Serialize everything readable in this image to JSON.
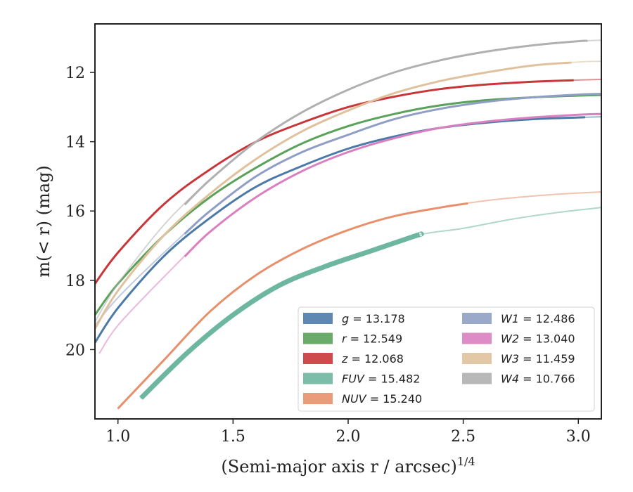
{
  "chart_data": {
    "type": "line",
    "xlabel": "(Semi-major axis r / arcsec)",
    "xlabel_sup": "1/4",
    "ylabel": "m(< r) (mag)",
    "xlim": [
      0.9,
      3.1
    ],
    "ylim": [
      22.0,
      10.6
    ],
    "y_inverted": true,
    "x_ticks": [
      "1.0",
      "1.5",
      "2.0",
      "2.5",
      "3.0"
    ],
    "y_ticks": [
      "12",
      "14",
      "16",
      "18",
      "20"
    ],
    "grid": false,
    "legend_position": "lower-right",
    "series": [
      {
        "name": "g",
        "value": "13.178",
        "color": "#4c7aa8",
        "x": [
          0.9,
          1.0,
          1.2,
          1.4,
          1.6,
          1.8,
          2.0,
          2.2,
          2.4,
          2.6,
          2.8,
          3.0,
          3.1
        ],
        "y": [
          19.8,
          18.8,
          17.3,
          16.2,
          15.3,
          14.7,
          14.2,
          13.85,
          13.6,
          13.45,
          13.35,
          13.3,
          13.28
        ],
        "solid_until": 3.03
      },
      {
        "name": "r",
        "value": "12.549",
        "color": "#5aa25a",
        "x": [
          0.9,
          1.0,
          1.2,
          1.4,
          1.6,
          1.8,
          2.0,
          2.2,
          2.4,
          2.6,
          2.8,
          3.0,
          3.1
        ],
        "y": [
          19.0,
          18.1,
          16.7,
          15.6,
          14.75,
          14.05,
          13.55,
          13.2,
          12.95,
          12.8,
          12.72,
          12.67,
          12.65
        ],
        "solid_until": 3.1
      },
      {
        "name": "z",
        "value": "12.068",
        "color": "#c9363a",
        "x": [
          0.9,
          1.0,
          1.2,
          1.4,
          1.6,
          1.8,
          2.0,
          2.2,
          2.4,
          2.6,
          2.8,
          3.0,
          3.1
        ],
        "y": [
          18.1,
          17.2,
          15.8,
          14.8,
          14.0,
          13.45,
          13.0,
          12.7,
          12.48,
          12.35,
          12.27,
          12.22,
          12.2
        ],
        "solid_until": 2.98
      },
      {
        "name": "FUV",
        "value": "15.482",
        "color": "#6db6a0",
        "x": [
          1.1,
          1.3,
          1.5,
          1.7,
          1.9,
          2.1,
          2.3,
          2.5,
          2.7,
          2.9,
          3.1
        ],
        "y": [
          21.4,
          20.1,
          19.0,
          18.15,
          17.6,
          17.15,
          16.7,
          16.5,
          16.25,
          16.05,
          15.9
        ],
        "solid_until": 2.31
      },
      {
        "name": "NUV",
        "value": "15.240",
        "color": "#e8906c",
        "x": [
          1.0,
          1.2,
          1.4,
          1.6,
          1.8,
          2.0,
          2.2,
          2.4,
          2.6,
          2.8,
          3.0,
          3.1
        ],
        "y": [
          21.7,
          20.3,
          18.9,
          17.85,
          17.1,
          16.55,
          16.15,
          15.9,
          15.7,
          15.57,
          15.48,
          15.45
        ],
        "solid_until": 2.52
      },
      {
        "name": "W1",
        "value": "12.486",
        "color": "#8f9ec4",
        "x": [
          0.9,
          1.0,
          1.2,
          1.4,
          1.6,
          1.8,
          2.0,
          2.2,
          2.4,
          2.6,
          2.8,
          3.0,
          3.1
        ],
        "y": [
          19.3,
          18.5,
          17.2,
          16.0,
          15.0,
          14.3,
          13.8,
          13.35,
          13.05,
          12.85,
          12.72,
          12.64,
          12.62
        ],
        "solid_until": 3.1
      },
      {
        "name": "W2",
        "value": "13.040",
        "color": "#d980c0",
        "x": [
          0.92,
          1.0,
          1.2,
          1.4,
          1.6,
          1.8,
          2.0,
          2.2,
          2.4,
          2.6,
          2.8,
          3.0,
          3.1
        ],
        "y": [
          20.1,
          19.3,
          17.9,
          16.6,
          15.6,
          14.85,
          14.3,
          13.9,
          13.6,
          13.42,
          13.3,
          13.22,
          13.2
        ],
        "solid_until": 3.1
      },
      {
        "name": "W3",
        "value": "11.459",
        "color": "#dfc29d",
        "x": [
          0.9,
          1.0,
          1.2,
          1.4,
          1.6,
          1.8,
          2.0,
          2.2,
          2.4,
          2.6,
          2.8,
          3.0,
          3.1
        ],
        "y": [
          19.4,
          18.3,
          16.7,
          15.5,
          14.5,
          13.7,
          13.1,
          12.6,
          12.25,
          12.0,
          11.8,
          11.7,
          11.68
        ],
        "solid_until": 2.97
      },
      {
        "name": "W4",
        "value": "10.766",
        "color": "#b0b0b0",
        "x": [
          0.9,
          1.0,
          1.2,
          1.4,
          1.6,
          1.8,
          2.0,
          2.2,
          2.4,
          2.6,
          2.8,
          3.0,
          3.1
        ],
        "y": [
          19.2,
          18.1,
          16.4,
          15.1,
          14.0,
          13.15,
          12.5,
          12.0,
          11.65,
          11.4,
          11.22,
          11.1,
          11.07
        ],
        "solid_until": 3.04
      }
    ]
  }
}
